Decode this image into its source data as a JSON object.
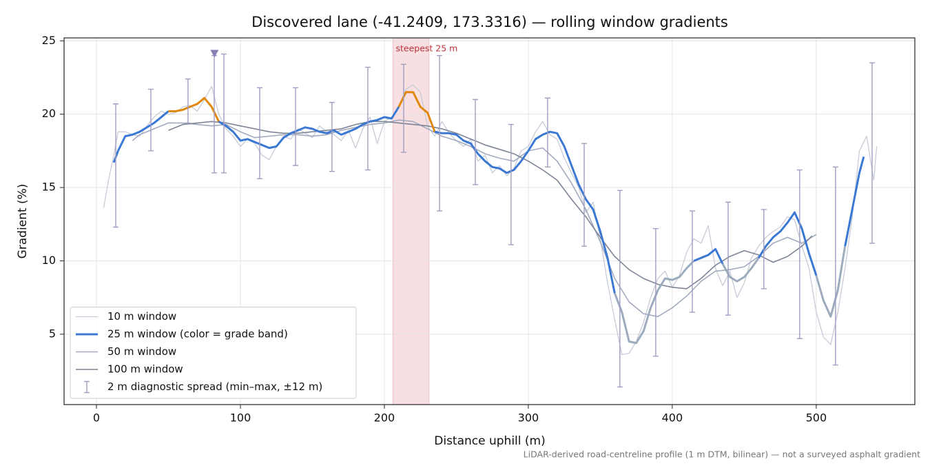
{
  "chart_data": {
    "type": "line",
    "title": "Discovered lane (-41.2409, 173.3316) — rolling window gradients",
    "xlabel": "Distance uphill (m)",
    "ylabel": "Gradient (%)",
    "footnote": "LiDAR-derived road-centreline profile (1 m DTM, bilinear) — not a surveyed asphalt gradient",
    "xlim": [
      -22.5,
      568.5
    ],
    "ylim": [
      0.2,
      25.2
    ],
    "xticks": [
      0,
      100,
      200,
      300,
      400,
      500
    ],
    "yticks": [
      5,
      10,
      15,
      20,
      25
    ],
    "grid": true,
    "legend": "lower left",
    "highlight": {
      "label": "steepest 25 m",
      "x0": 206,
      "x1": 231,
      "color": "#e9a3ab"
    },
    "peak_marker": {
      "x": 82,
      "y": 24.1,
      "color": "#8a7fb2"
    },
    "series": [
      {
        "name": "10 m window",
        "color": "#c6cbd7",
        "width": 1.3,
        "x": [
          5,
          8,
          12,
          15,
          20,
          25,
          30,
          35,
          40,
          45,
          50,
          55,
          60,
          65,
          70,
          75,
          80,
          85,
          90,
          95,
          100,
          105,
          110,
          115,
          120,
          125,
          130,
          135,
          140,
          145,
          150,
          155,
          160,
          165,
          170,
          175,
          180,
          185,
          190,
          195,
          200,
          205,
          210,
          215,
          220,
          225,
          230,
          235,
          240,
          245,
          250,
          255,
          260,
          265,
          270,
          275,
          280,
          285,
          290,
          295,
          300,
          305,
          310,
          315,
          320,
          325,
          330,
          335,
          340,
          345,
          350,
          355,
          360,
          365,
          370,
          375,
          380,
          385,
          390,
          395,
          400,
          405,
          410,
          415,
          420,
          425,
          430,
          435,
          440,
          445,
          450,
          455,
          460,
          465,
          470,
          475,
          480,
          485,
          490,
          495,
          500,
          505,
          510,
          515,
          520,
          525,
          530,
          535,
          540,
          542
        ],
        "values": [
          13.6,
          15.3,
          17.2,
          18.8,
          18.8,
          18.6,
          18.5,
          19.2,
          19.8,
          20.2,
          20.0,
          20.1,
          20.5,
          20.6,
          20.2,
          21.0,
          21.9,
          20.0,
          19.0,
          18.5,
          17.8,
          18.3,
          18.0,
          17.2,
          16.9,
          17.8,
          18.5,
          18.3,
          19.0,
          18.7,
          18.4,
          19.2,
          18.8,
          18.6,
          18.2,
          18.9,
          17.7,
          19.0,
          19.8,
          18.0,
          19.5,
          19.8,
          20.5,
          21.7,
          22.0,
          21.5,
          19.2,
          18.5,
          19.5,
          18.7,
          18.2,
          17.8,
          18.3,
          16.8,
          17.2,
          16.0,
          16.5,
          15.8,
          16.3,
          17.5,
          17.8,
          18.8,
          19.5,
          18.6,
          18.3,
          17.0,
          16.0,
          15.0,
          13.3,
          14.0,
          11.5,
          8.5,
          6.0,
          3.6,
          3.7,
          4.5,
          5.8,
          7.5,
          8.8,
          9.3,
          8.2,
          9.0,
          10.6,
          11.5,
          11.2,
          12.4,
          9.5,
          8.3,
          9.3,
          7.5,
          8.5,
          10.2,
          11.0,
          11.6,
          12.0,
          12.3,
          13.0,
          12.8,
          11.0,
          9.5,
          6.5,
          4.8,
          4.3,
          6.5,
          9.5,
          13.0,
          17.5,
          18.5,
          15.5,
          17.8
        ]
      },
      {
        "name": "50 m window",
        "color": "#a2aabf",
        "width": 1.6,
        "x": [
          25,
          30,
          40,
          50,
          60,
          70,
          80,
          90,
          100,
          110,
          120,
          130,
          140,
          150,
          160,
          170,
          180,
          190,
          200,
          210,
          220,
          230,
          240,
          250,
          260,
          270,
          280,
          290,
          300,
          310,
          320,
          330,
          340,
          350,
          360,
          370,
          380,
          390,
          400,
          410,
          420,
          430,
          440,
          450,
          460,
          470,
          480,
          490,
          500
        ],
        "values": [
          18.2,
          18.6,
          19.0,
          19.4,
          19.4,
          19.3,
          19.2,
          19.3,
          18.8,
          18.4,
          18.5,
          18.6,
          18.6,
          18.5,
          18.6,
          18.9,
          19.1,
          19.3,
          19.4,
          19.6,
          19.5,
          19.0,
          18.5,
          18.2,
          17.8,
          17.3,
          17.0,
          16.8,
          17.5,
          17.7,
          16.8,
          15.3,
          13.5,
          11.3,
          8.8,
          7.2,
          6.4,
          6.2,
          6.8,
          7.6,
          8.6,
          9.3,
          9.4,
          9.6,
          10.3,
          11.2,
          11.6,
          11.2,
          11.8
        ]
      },
      {
        "name": "100 m window",
        "color": "#7c8496",
        "width": 1.6,
        "x": [
          50,
          60,
          70,
          80,
          90,
          100,
          110,
          120,
          130,
          140,
          150,
          160,
          170,
          180,
          190,
          200,
          210,
          220,
          230,
          240,
          250,
          260,
          270,
          280,
          290,
          300,
          310,
          320,
          330,
          340,
          350,
          360,
          370,
          380,
          390,
          400,
          410,
          420,
          430,
          440,
          450,
          460,
          470,
          480,
          490,
          497
        ],
        "values": [
          18.9,
          19.3,
          19.4,
          19.5,
          19.4,
          19.2,
          19.0,
          18.8,
          18.7,
          18.7,
          18.8,
          18.9,
          19.0,
          19.3,
          19.5,
          19.5,
          19.4,
          19.3,
          19.2,
          19.0,
          18.7,
          18.3,
          17.9,
          17.6,
          17.3,
          16.8,
          16.2,
          15.5,
          14.2,
          13.0,
          11.6,
          10.3,
          9.4,
          8.8,
          8.4,
          8.2,
          8.1,
          8.8,
          9.7,
          10.3,
          10.7,
          10.4,
          9.9,
          10.3,
          11.0,
          11.7
        ]
      },
      {
        "name": "25 m window (color = grade band)",
        "color": "#3a78d4",
        "width": 3,
        "grade_bands": [
          {
            "below": 10,
            "color": "#9cabbd"
          },
          {
            "below": 20,
            "color": "#3a78d4"
          },
          {
            "color": "#e0880c"
          }
        ],
        "x": [
          12,
          15,
          20,
          25,
          30,
          35,
          40,
          45,
          50,
          55,
          60,
          65,
          70,
          75,
          80,
          85,
          90,
          95,
          100,
          105,
          110,
          115,
          120,
          125,
          130,
          135,
          140,
          145,
          150,
          155,
          160,
          165,
          170,
          175,
          180,
          185,
          190,
          195,
          200,
          205,
          210,
          215,
          220,
          225,
          230,
          235,
          240,
          245,
          250,
          255,
          260,
          265,
          270,
          275,
          280,
          285,
          290,
          295,
          300,
          305,
          310,
          315,
          320,
          325,
          330,
          335,
          340,
          345,
          350,
          355,
          360,
          365,
          370,
          375,
          380,
          385,
          390,
          395,
          400,
          405,
          410,
          415,
          420,
          425,
          430,
          435,
          440,
          445,
          450,
          455,
          460,
          465,
          470,
          475,
          480,
          485,
          490,
          495,
          500,
          505,
          510,
          515,
          520,
          525,
          530,
          533
        ],
        "values": [
          16.7,
          17.5,
          18.5,
          18.6,
          18.8,
          19.1,
          19.4,
          19.8,
          20.2,
          20.2,
          20.3,
          20.5,
          20.7,
          21.1,
          20.5,
          19.5,
          19.2,
          18.8,
          18.2,
          18.3,
          18.1,
          17.9,
          17.7,
          17.8,
          18.4,
          18.7,
          18.9,
          19.1,
          19.0,
          18.8,
          18.7,
          18.9,
          18.6,
          18.8,
          19.0,
          19.3,
          19.5,
          19.6,
          19.8,
          19.7,
          20.5,
          21.5,
          21.5,
          20.5,
          20.1,
          18.8,
          18.7,
          18.7,
          18.6,
          18.2,
          18.0,
          17.3,
          16.8,
          16.4,
          16.3,
          16.0,
          16.2,
          16.8,
          17.5,
          18.3,
          18.6,
          18.8,
          18.7,
          17.8,
          16.5,
          15.2,
          14.2,
          13.5,
          12.0,
          10.2,
          7.8,
          6.5,
          4.5,
          4.4,
          5.2,
          6.8,
          8.0,
          8.8,
          8.7,
          8.9,
          9.5,
          10.0,
          10.2,
          10.4,
          10.8,
          9.8,
          8.9,
          8.6,
          8.9,
          9.5,
          10.2,
          11.0,
          11.6,
          12.0,
          12.6,
          13.3,
          12.2,
          10.5,
          9.0,
          7.3,
          6.2,
          8.0,
          11.0,
          13.5,
          16.0,
          17.1
        ]
      },
      {
        "name": "2 m diagnostic spread (min–max, ±12 m)",
        "color": "#a19dc2",
        "kind": "errorbar",
        "x": [
          13.4,
          37.8,
          63.6,
          81.8,
          88.5,
          113.4,
          138.3,
          163.6,
          188.5,
          213.4,
          238.3,
          263.2,
          288,
          313.4,
          338.8,
          363.6,
          388.5,
          413.9,
          438.8,
          463.6,
          488.5,
          513.4,
          538.8
        ],
        "low": [
          12.3,
          17.5,
          19.4,
          16.0,
          16.0,
          15.6,
          16.5,
          16.1,
          16.2,
          17.4,
          13.4,
          15.2,
          11.1,
          16.4,
          11.0,
          1.4,
          3.5,
          6.5,
          6.3,
          8.1,
          4.7,
          2.9,
          11.2
        ],
        "high": [
          20.7,
          21.7,
          22.4,
          24.0,
          24.1,
          21.8,
          21.8,
          20.8,
          23.2,
          23.4,
          24.0,
          21.0,
          19.3,
          21.1,
          18.0,
          14.8,
          12.2,
          13.4,
          14.0,
          13.5,
          16.2,
          16.4,
          23.5
        ]
      }
    ]
  }
}
